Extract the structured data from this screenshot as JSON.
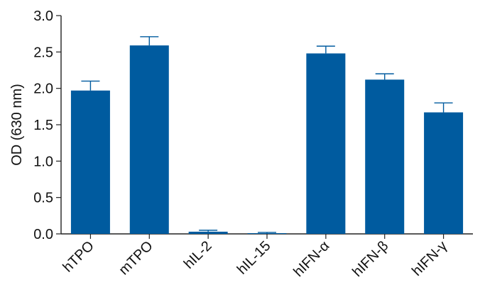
{
  "chart_data": {
    "type": "bar",
    "categories": [
      "hTPO",
      "mTPO",
      "hIL-2",
      "hIL-15",
      "hIFN-α",
      "hIFN-β",
      "hIFN-γ"
    ],
    "values": [
      1.97,
      2.59,
      0.03,
      0.01,
      2.48,
      2.12,
      1.67
    ],
    "error": [
      0.13,
      0.12,
      0.02,
      0.01,
      0.1,
      0.08,
      0.13
    ],
    "title": "",
    "xlabel": "",
    "ylabel": "OD (630 nm)",
    "ylim": [
      0,
      3.0
    ],
    "yticks": [
      "0.0",
      "0.5",
      "1.0",
      "1.5",
      "2.0",
      "2.5",
      "3.0"
    ],
    "bar_color": "#005b9f",
    "grid": false,
    "legend": "none"
  }
}
